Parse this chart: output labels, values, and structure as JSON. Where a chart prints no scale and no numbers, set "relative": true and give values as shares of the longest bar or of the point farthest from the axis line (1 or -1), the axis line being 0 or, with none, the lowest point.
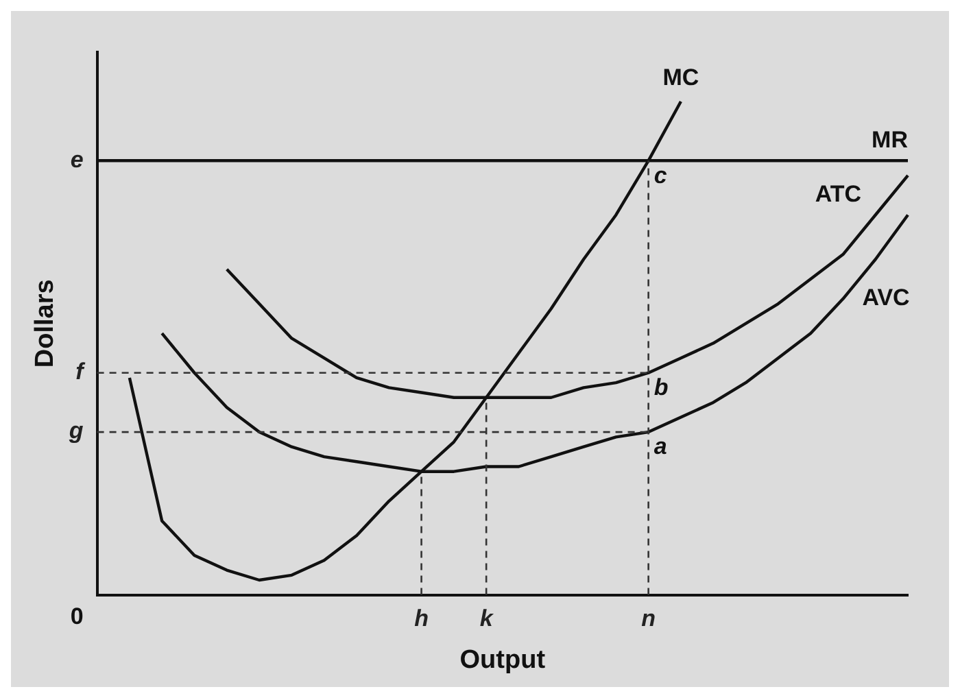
{
  "chart_data": {
    "type": "line",
    "relative": true,
    "xlabel": "Output",
    "ylabel": "Dollars",
    "grid": false,
    "legend": false,
    "marker": "none",
    "line_style": "solid",
    "categories": [
      null,
      null,
      null,
      null,
      null,
      null,
      null,
      null,
      null,
      null,
      "h",
      null,
      "k",
      null,
      null,
      null,
      null,
      "n",
      null,
      null,
      null,
      null,
      null,
      null,
      null,
      null
    ],
    "series": [
      {
        "name": "MC",
        "color": "#111111",
        "values": [
          null,
          0.44,
          0.15,
          0.08,
          0.05,
          0.03,
          0.04,
          0.07,
          0.12,
          0.19,
          0.25,
          0.31,
          0.4,
          0.49,
          0.58,
          0.68,
          0.77,
          0.88,
          1.0,
          null,
          null,
          null,
          null,
          null,
          null,
          null
        ]
      },
      {
        "name": "ATC",
        "color": "#111111",
        "values": [
          null,
          null,
          null,
          null,
          0.66,
          0.59,
          0.52,
          0.48,
          0.44,
          0.42,
          0.41,
          0.4,
          0.4,
          0.4,
          0.4,
          0.42,
          0.43,
          0.45,
          0.48,
          0.51,
          0.55,
          0.59,
          0.64,
          0.69,
          0.77,
          0.85
        ]
      },
      {
        "name": "AVC",
        "color": "#111111",
        "values": [
          null,
          null,
          0.53,
          0.45,
          0.38,
          0.33,
          0.3,
          0.28,
          0.27,
          0.26,
          0.25,
          0.25,
          0.26,
          0.26,
          0.28,
          0.3,
          0.32,
          0.33,
          0.36,
          0.39,
          0.43,
          0.48,
          0.53,
          0.6,
          0.68,
          0.77
        ]
      }
    ],
    "ref_lines": [
      {
        "axis": "y",
        "value": 0.88,
        "label": "e",
        "line_style": "solid",
        "color": "#111111"
      },
      {
        "axis": "y",
        "value": 0.45,
        "label": "f",
        "line_style": "dashed",
        "color": "#333333"
      },
      {
        "axis": "y",
        "value": 0.33,
        "label": "g",
        "line_style": "dashed",
        "color": "#333333"
      },
      {
        "axis": "x",
        "value": "h",
        "line_style": "dashed",
        "color": "#333333"
      },
      {
        "axis": "x",
        "value": "k",
        "line_style": "dashed",
        "color": "#333333"
      },
      {
        "axis": "x",
        "value": "n",
        "line_style": "dashed",
        "color": "#333333"
      }
    ],
    "annotations": [
      "0",
      {
        "text": "MR",
        "y": 0.88
      },
      {
        "text": "c",
        "x": "n",
        "y": 0.88
      },
      {
        "text": "b",
        "x": "n",
        "y": 0.45
      },
      {
        "text": "a",
        "x": "n",
        "y": 0.33
      }
    ]
  }
}
